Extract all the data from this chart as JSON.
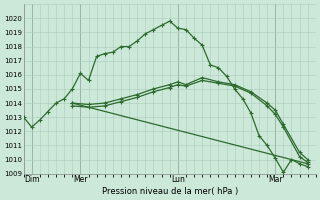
{
  "xlabel": "Pression niveau de la mer( hPa )",
  "bg_color": "#cce8d8",
  "grid_color": "#aaccbb",
  "line_color": "#2d6a2d",
  "ylim": [
    1009,
    1021
  ],
  "xlim": [
    0,
    72
  ],
  "yticks": [
    1009,
    1010,
    1011,
    1012,
    1013,
    1014,
    1015,
    1016,
    1017,
    1018,
    1019,
    1020
  ],
  "day_labels": [
    "Dim",
    "Mer",
    "Lun",
    "Mar"
  ],
  "day_positions": [
    2,
    14,
    38,
    62
  ],
  "vline_color": "#888888",
  "series": [
    {
      "x": [
        0,
        2,
        4,
        6,
        8,
        10,
        12,
        14,
        16,
        18,
        20,
        22,
        24,
        26,
        28,
        30,
        32,
        34,
        36,
        38,
        40,
        42,
        44,
        46,
        48,
        50,
        52,
        54,
        56,
        58,
        60,
        62,
        64,
        66,
        68,
        70
      ],
      "y": [
        1013.0,
        1012.3,
        1012.8,
        1013.4,
        1014.0,
        1014.3,
        1015.0,
        1016.1,
        1015.6,
        1017.3,
        1017.5,
        1017.6,
        1018.0,
        1018.0,
        1018.4,
        1018.9,
        1019.2,
        1019.5,
        1019.8,
        1019.3,
        1019.2,
        1018.6,
        1018.1,
        1016.7,
        1016.5,
        1015.9,
        1015.0,
        1014.3,
        1013.3,
        1011.7,
        1011.0,
        1010.1,
        1009.1,
        1010.0,
        1009.7,
        1009.5
      ]
    },
    {
      "x": [
        12,
        16,
        20,
        24,
        28,
        32,
        36,
        38,
        40,
        44,
        48,
        52,
        56,
        60,
        62,
        64,
        68,
        70
      ],
      "y": [
        1014.0,
        1013.9,
        1014.0,
        1014.3,
        1014.6,
        1015.0,
        1015.3,
        1015.5,
        1015.3,
        1015.8,
        1015.5,
        1015.3,
        1014.8,
        1014.0,
        1013.5,
        1012.5,
        1010.5,
        1010.0
      ]
    },
    {
      "x": [
        12,
        16,
        20,
        24,
        28,
        32,
        36,
        38,
        40,
        44,
        48,
        52,
        56,
        60,
        62,
        64,
        68,
        70
      ],
      "y": [
        1013.8,
        1013.7,
        1013.8,
        1014.1,
        1014.4,
        1014.8,
        1015.1,
        1015.3,
        1015.2,
        1015.6,
        1015.4,
        1015.2,
        1014.7,
        1013.8,
        1013.2,
        1012.3,
        1010.2,
        1009.8
      ]
    },
    {
      "x": [
        12,
        70
      ],
      "y": [
        1014.0,
        1009.7
      ]
    }
  ]
}
